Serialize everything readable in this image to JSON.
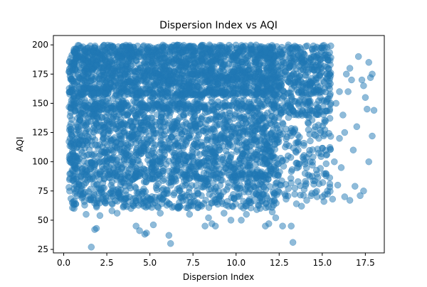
{
  "chart_data": {
    "type": "scatter",
    "title": "Dispersion Index vs AQI",
    "xlabel": "Dispersion Index",
    "ylabel": "AQI",
    "xlim": [
      -0.6,
      18.6
    ],
    "ylim": [
      22,
      208
    ],
    "xticks": [
      0.0,
      2.5,
      5.0,
      7.5,
      10.0,
      12.5,
      15.0,
      17.5
    ],
    "xtick_labels": [
      "0.0",
      "2.5",
      "5.0",
      "7.5",
      "10.0",
      "12.5",
      "15.0",
      "17.5"
    ],
    "yticks": [
      25,
      50,
      75,
      100,
      125,
      150,
      175,
      200
    ],
    "ytick_labels": [
      "25",
      "50",
      "75",
      "100",
      "125",
      "150",
      "175",
      "200"
    ],
    "grid": false,
    "marker_color": "#1f77b4",
    "marker_alpha": 0.5,
    "series": [
      {
        "x": [
          1.6,
          1.8,
          1.9,
          4.2,
          4.4,
          4.7,
          4.8,
          5.2,
          6.1,
          6.2,
          8.2,
          8.6,
          8.8,
          9.7,
          10.3,
          11.7,
          12.7,
          13.2,
          13.3,
          12.3,
          11.2,
          11.9,
          13.5,
          0.5,
          0.6,
          1.3,
          2.1,
          2.8,
          3.1,
          3.9,
          5.6,
          6.6,
          7.3,
          8.4,
          9.3,
          10.6,
          11.4,
          12.1,
          13.8,
          14.1,
          14.4,
          14.7,
          15.1,
          15.3,
          15.6,
          15.9,
          16.1,
          16.3,
          16.6,
          16.9,
          17.2,
          17.4,
          17.7,
          17.9,
          18.0,
          17.9,
          17.8,
          17.7,
          17.4,
          17.5,
          17.6,
          17.0,
          16.8,
          16.5,
          16.2,
          15.8,
          16.0,
          15.4,
          14.9,
          14.6,
          14.3,
          15.2,
          15.5,
          16.4,
          17.1,
          16.7,
          13.9,
          13.6,
          14.0,
          14.8,
          15.7,
          16.0,
          16.3,
          17.3,
          14.2,
          13.4,
          15.0,
          16.6,
          0.4,
          0.9,
          1.1,
          2.4,
          3.3,
          3.6,
          4.0,
          5.0,
          5.8,
          6.8,
          7.6,
          8.0,
          9.0,
          9.5,
          10.1,
          10.8,
          11.6,
          12.5,
          12.9,
          7.1
        ],
        "y": [
          27,
          42,
          43,
          45,
          41,
          38,
          39,
          46,
          37,
          30,
          45,
          47,
          45,
          50,
          50,
          45,
          45,
          45,
          31,
          52,
          59,
          47,
          64,
          65,
          60,
          55,
          54,
          58,
          56,
          60,
          56,
          61,
          55,
          52,
          56,
          55,
          60,
          57,
          62,
          67,
          73,
          70,
          66,
          75,
          68,
          80,
          95,
          70,
          67,
          79,
          71,
          75,
          100,
          122,
          144,
          175,
          172,
          185,
          165,
          155,
          145,
          130,
          110,
          160,
          140,
          150,
          120,
          165,
          180,
          130,
          100,
          90,
          150,
          175,
          190,
          170,
          185,
          110,
          90,
          120,
          100,
          160,
          125,
          170,
          140,
          170,
          160,
          180,
          90,
          80,
          70,
          65,
          70,
          75,
          64,
          68,
          72,
          70,
          66,
          62,
          68,
          66,
          70,
          65,
          72,
          74,
          68,
          67
        ]
      }
    ],
    "density_bands": [
      {
        "x_range": [
          0.3,
          12.5
        ],
        "y_range": [
          157,
          200
        ],
        "n": 1700
      },
      {
        "x_range": [
          0.3,
          12.5
        ],
        "y_range": [
          85,
          150
        ],
        "n": 1500
      },
      {
        "x_range": [
          0.3,
          12.5
        ],
        "y_range": [
          60,
          90
        ],
        "n": 450
      },
      {
        "x_range": [
          12.5,
          15.5
        ],
        "y_range": [
          140,
          200
        ],
        "n": 350
      },
      {
        "x_range": [
          12.5,
          15.5
        ],
        "y_range": [
          70,
          145
        ],
        "n": 160
      },
      {
        "x_range": [
          0.3,
          12.5
        ],
        "y_range": [
          145,
          160
        ],
        "n": 250
      }
    ]
  }
}
